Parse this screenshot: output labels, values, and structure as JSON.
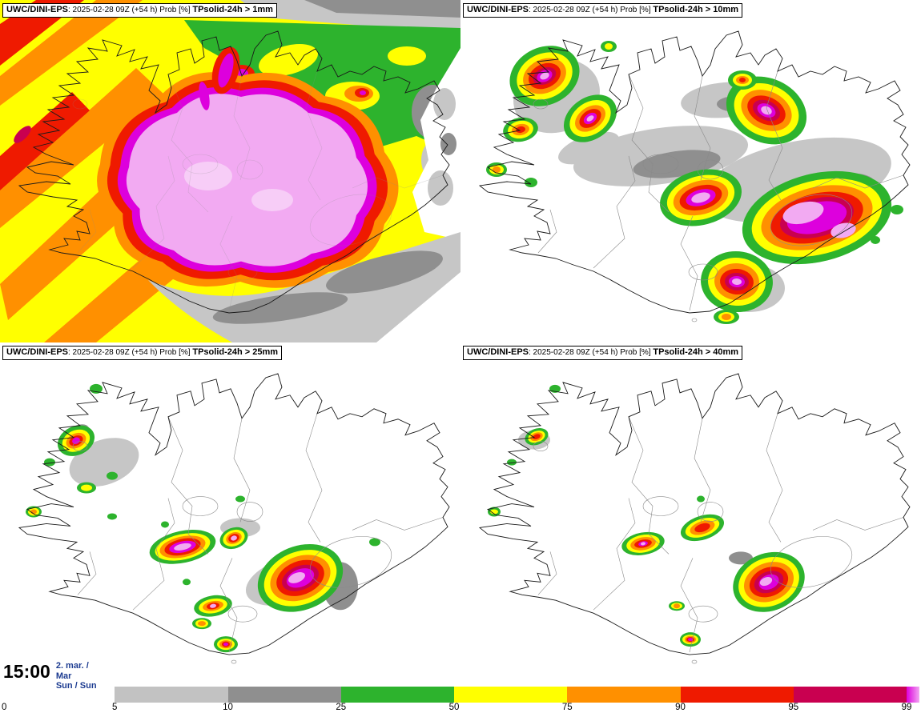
{
  "panels": [
    {
      "product_bold": "UWC/DINI-EPS",
      "run_info": ": 2025-02-28 09Z (+54 h) Prob [%] ",
      "threshold_bold": "TPsolid-24h > 1mm"
    },
    {
      "product_bold": "UWC/DINI-EPS",
      "run_info": ": 2025-02-28 09Z (+54 h) Prob [%] ",
      "threshold_bold": "TPsolid-24h > 10mm"
    },
    {
      "product_bold": "UWC/DINI-EPS",
      "run_info": ": 2025-02-28 09Z (+54 h) Prob [%] ",
      "threshold_bold": "TPsolid-24h > 25mm"
    },
    {
      "product_bold": "UWC/DINI-EPS",
      "run_info": ": 2025-02-28 09Z (+54 h) Prob [%] ",
      "threshold_bold": "TPsolid-24h > 40mm"
    }
  ],
  "colorbar": {
    "ticks": [
      "0",
      "5",
      "10",
      "25",
      "50",
      "75",
      "90",
      "95",
      "99"
    ],
    "segments": [
      {
        "range": "0-5",
        "color": "#ffffff"
      },
      {
        "range": "5-10",
        "color": "#c2c2c2"
      },
      {
        "range": "10-25",
        "color": "#8f8f8f"
      },
      {
        "range": "25-50",
        "color": "#2db32d"
      },
      {
        "range": "50-75",
        "color": "#ffff00"
      },
      {
        "range": "75-90",
        "color": "#ff9000"
      },
      {
        "range": "90-95",
        "color": "#ef1a00"
      },
      {
        "range": "95-99",
        "color": "#c90050"
      }
    ],
    "end_cap_colors": [
      "#dd00dd",
      "#f2a7f2"
    ]
  },
  "footer": {
    "time": "15:00",
    "date_line1": "2. mar. /",
    "date_line2": "Mar",
    "date_line3": "Sun / Sun"
  },
  "map_palette": {
    "white": "#ffffff",
    "light_gray": "#c6c6c6",
    "gray": "#8f8f8f",
    "green": "#2db32d",
    "yellow": "#ffff00",
    "orange": "#ff9000",
    "red": "#ef1a00",
    "crimson": "#c90050",
    "magenta": "#dd00dd",
    "violet": "#f2aaf2",
    "pale_pink": "#f7cdf7"
  }
}
